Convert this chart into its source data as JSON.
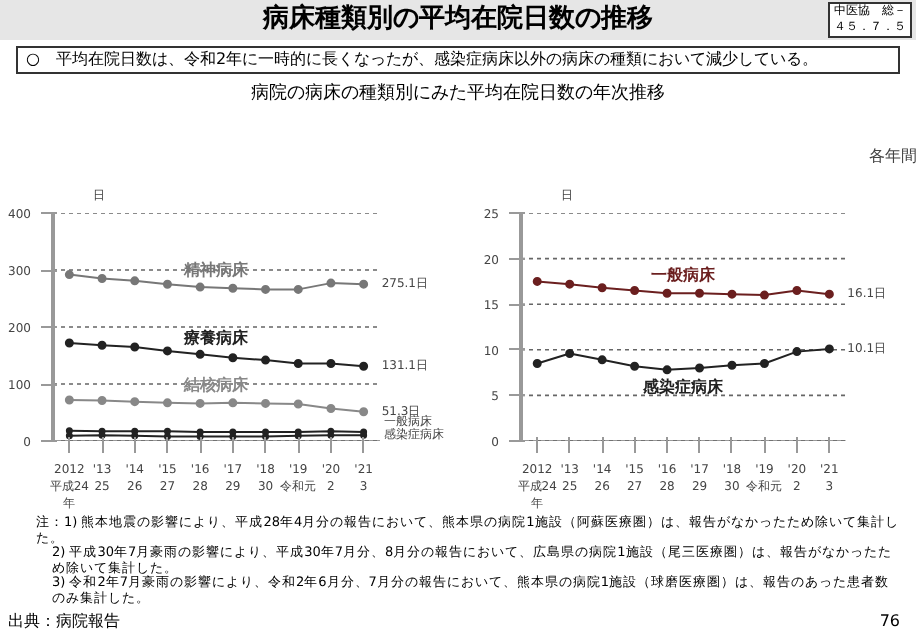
{
  "chart_data": [
    {
      "type": "line",
      "title": "病床種類別の平均在院日数の推移",
      "subtitle": "○　平均在院日数は、令和2年に一時的に長くなったが、感染症病床以外の病床の種類において減少している。",
      "ylabel": "日",
      "annotations": [
        "中医協　総－４５．７．５",
        "病院の病床の種類別にみた平均在院日数の年次推移",
        "注：1) 熊本地震の影響により、平成28年4月分の報告において、熊本県の病院1施設（阿蘇医療圏）は、報告がなかったため除いて集計した。",
        "2) 平成30年7月豪雨の影響により、平成30年7月分、8月分の報告において、広島県の病院1施設（尾三医療圏）は、報告がなかったため除いて集計した。",
        "3) 令和2年7月豪雨の影響により、令和2年6月分、7月分の報告において、熊本県の病院1施設（球磨医療圏）は、報告のあった患者数のみ集計した。",
        "出典：病院報告",
        "76"
      ],
      "categories": [
        "2012\n平成24\n年",
        "'13\n25",
        "'14\n26",
        "'15\n27",
        "'16\n28",
        "'17\n29",
        "'18\n30",
        "'19\n令和元",
        "'20\n2",
        "'21\n3"
      ],
      "ylim": [
        0,
        400
      ],
      "yticks": [
        0,
        100,
        200,
        300,
        400
      ],
      "grid": "y",
      "marker": "circle",
      "line_style": "solid",
      "series": [
        {
          "name": "精神病床",
          "color": "#777777",
          "values": [
            292,
            285,
            281,
            275,
            270,
            268,
            266,
            266,
            277,
            275.1
          ],
          "value_labels": [
            null,
            null,
            null,
            null,
            null,
            null,
            null,
            null,
            null,
            "275.1日"
          ]
        },
        {
          "name": "療養病床",
          "color": "#222222",
          "values": [
            172,
            168,
            165,
            158,
            152,
            146,
            142,
            136,
            136,
            131.1
          ],
          "value_labels": [
            null,
            null,
            null,
            null,
            null,
            null,
            null,
            null,
            null,
            "131.1日"
          ]
        },
        {
          "name": "結核病床",
          "color": "#888888",
          "values": [
            72,
            71,
            69,
            67,
            66,
            67,
            66,
            65,
            57,
            51.3
          ],
          "value_labels": [
            null,
            null,
            null,
            null,
            null,
            null,
            null,
            null,
            null,
            "51.3日"
          ]
        },
        {
          "name": "一般病床",
          "color": "#222222",
          "values": [
            18,
            17,
            17,
            17,
            16,
            16,
            16,
            16,
            17,
            16
          ]
        },
        {
          "name": "感染症病床",
          "color": "#222222",
          "values": [
            9,
            10,
            9,
            8,
            8,
            8,
            8,
            9,
            10,
            10
          ]
        }
      ]
    },
    {
      "type": "line",
      "ylabel": "日",
      "annotations": [
        "各年間"
      ],
      "categories": [
        "2012\n平成24\n年",
        "'13\n25",
        "'14\n26",
        "'15\n27",
        "'16\n28",
        "'17\n29",
        "'18\n30",
        "'19\n令和元",
        "'20\n2",
        "'21\n3"
      ],
      "ylim": [
        0,
        25
      ],
      "yticks": [
        0,
        5,
        10,
        15,
        20,
        25
      ],
      "grid": "y",
      "marker": "circle",
      "line_style": "solid",
      "series": [
        {
          "name": "一般病床",
          "color": "#6b1f1f",
          "values": [
            17.5,
            17.2,
            16.8,
            16.5,
            16.2,
            16.2,
            16.1,
            16.0,
            16.5,
            16.1
          ],
          "value_labels": [
            null,
            null,
            null,
            null,
            null,
            null,
            null,
            null,
            null,
            "16.1日"
          ]
        },
        {
          "name": "感染症病床",
          "color": "#222222",
          "values": [
            8.5,
            9.6,
            8.9,
            8.2,
            7.8,
            8.0,
            8.3,
            8.5,
            9.8,
            10.1
          ],
          "value_labels": [
            null,
            null,
            null,
            null,
            null,
            null,
            null,
            null,
            null,
            "10.1日"
          ]
        }
      ]
    }
  ]
}
